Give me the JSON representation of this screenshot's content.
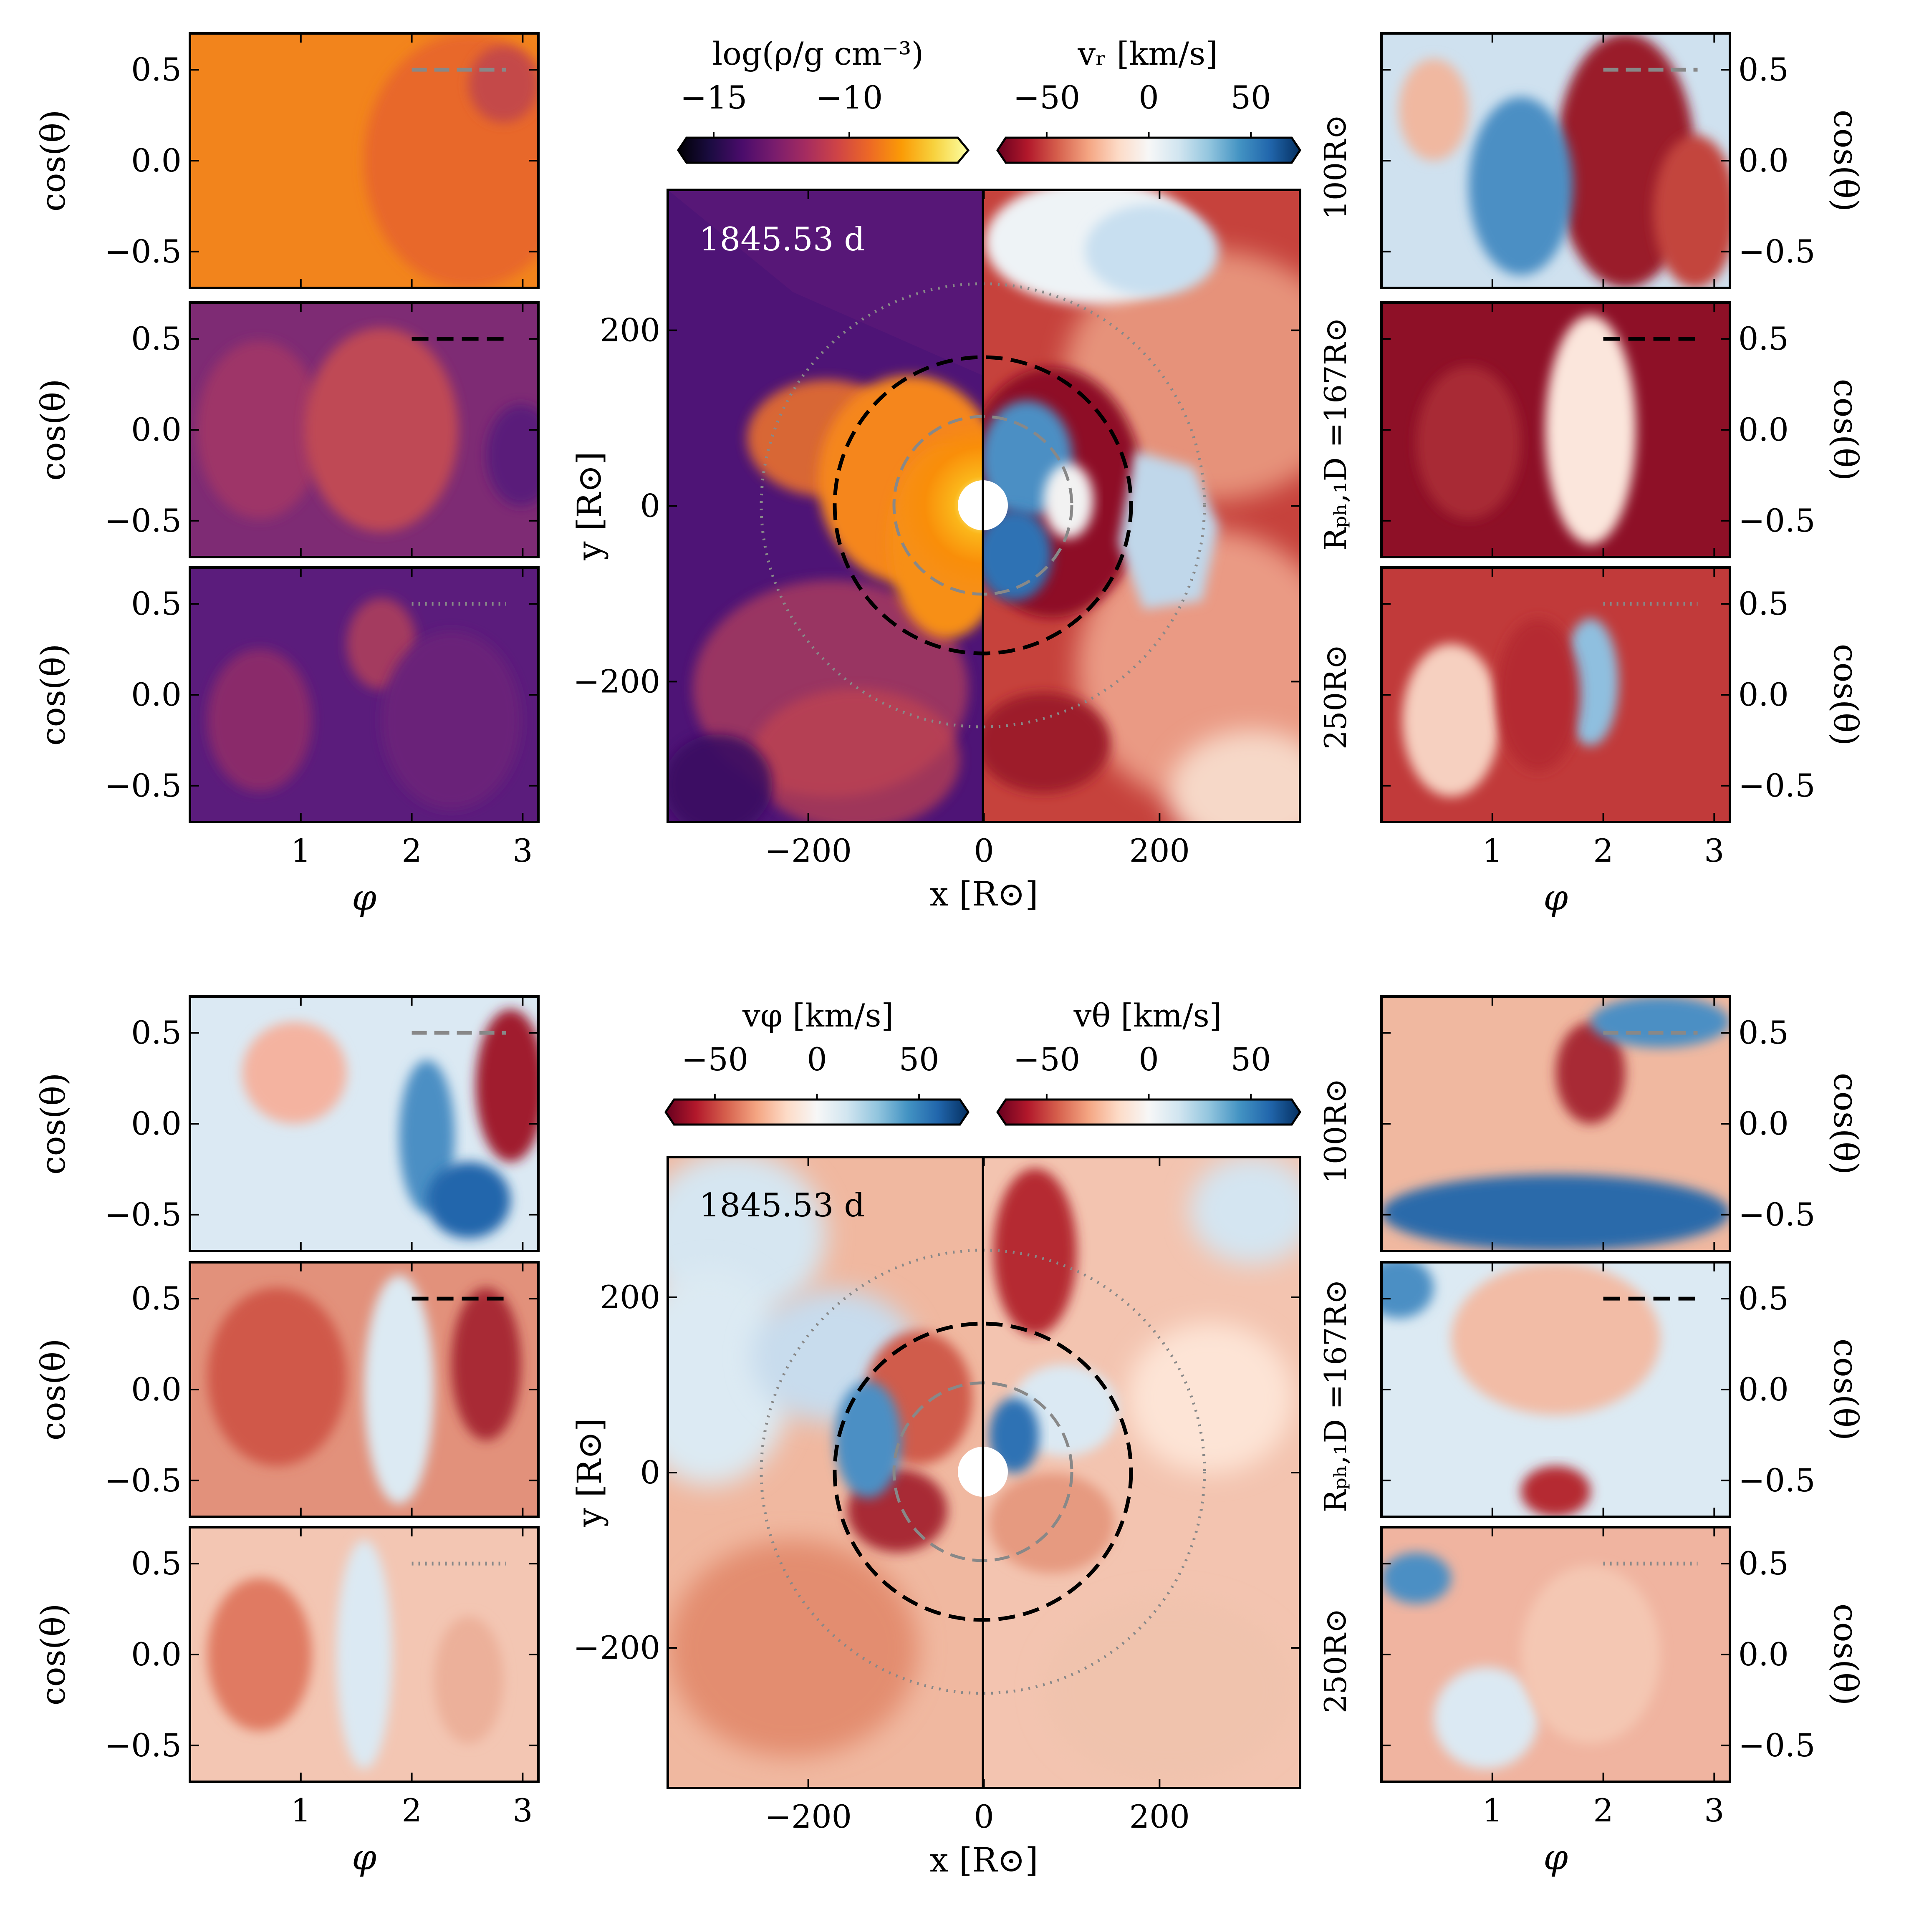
{
  "figure": {
    "time_label": "1845.53 d",
    "radii_labels": {
      "inner": "100R⊙",
      "middle": "Rₚₕ,₁D =167R⊙",
      "outer": "250R⊙"
    },
    "radii_values": [
      100,
      167,
      250
    ],
    "colors": {
      "density_cmap": [
        "#000004",
        "#1b0c41",
        "#4a0c6b",
        "#781c6d",
        "#a52c60",
        "#cf4446",
        "#ed6925",
        "#fb9b06",
        "#f7d13d",
        "#fcffa4"
      ],
      "diverging_cmap": [
        "#67001f",
        "#b2182b",
        "#d6604d",
        "#f4a582",
        "#fddbc7",
        "#f7f7f7",
        "#d1e5f0",
        "#92c5de",
        "#4393c3",
        "#2166ac",
        "#053061"
      ],
      "circle_inner": "#888888",
      "circle_middle": "#000000",
      "circle_outer": "#888888"
    }
  },
  "chart_data": [
    {
      "id": "top-center",
      "type": "heatmap",
      "xlabel": "x [R⊙]",
      "ylabel": "y [R⊙]",
      "xlim": [
        -360,
        360
      ],
      "ylim": [
        -360,
        360
      ],
      "xticks": [
        -200,
        0,
        200
      ],
      "yticks": [
        -200,
        0,
        200
      ],
      "xtick_labels": [
        "−200",
        "0",
        "200"
      ],
      "ytick_labels": [
        "−200",
        "0",
        "200"
      ],
      "left_colorbar": {
        "label": "log(ρ/g cm⁻³)",
        "ticks": [
          -15,
          -10
        ],
        "tick_labels": [
          "−15",
          "−10"
        ],
        "range": [
          -16,
          -6
        ]
      },
      "right_colorbar": {
        "label": "vᵣ [km/s]",
        "ticks": [
          -50,
          0,
          50
        ],
        "tick_labels": [
          "−50",
          "0",
          "50"
        ],
        "range": [
          -70,
          70
        ]
      }
    },
    {
      "id": "bottom-center",
      "type": "heatmap",
      "xlabel": "x [R⊙]",
      "ylabel": "y [R⊙]",
      "xlim": [
        -360,
        360
      ],
      "ylim": [
        -360,
        360
      ],
      "xticks": [
        -200,
        0,
        200
      ],
      "yticks": [
        -200,
        0,
        200
      ],
      "xtick_labels": [
        "−200",
        "0",
        "200"
      ],
      "ytick_labels": [
        "−200",
        "0",
        "200"
      ],
      "left_colorbar": {
        "label": "vφ [km/s]",
        "ticks": [
          -50,
          0,
          50
        ],
        "tick_labels": [
          "−50",
          "0",
          "50"
        ],
        "range": [
          -70,
          70
        ]
      },
      "right_colorbar": {
        "label": "vθ [km/s]",
        "ticks": [
          -50,
          0,
          50
        ],
        "tick_labels": [
          "−50",
          "0",
          "50"
        ],
        "range": [
          -70,
          70
        ]
      }
    },
    {
      "id": "side-maps",
      "type": "heatmap",
      "xlabel": "φ",
      "ylabel": "cos(θ)",
      "xlim": [
        0,
        3.14159
      ],
      "ylim": [
        -0.7,
        0.7
      ],
      "xticks": [
        1,
        2,
        3
      ],
      "yticks": [
        0.5,
        0.0,
        -0.5
      ],
      "xtick_labels": [
        "1",
        "2",
        "3"
      ],
      "ytick_labels": [
        "0.5",
        "0.0",
        "−0.5"
      ],
      "panels": [
        "top-left ρ at 100R⊙",
        "top-left ρ at 167R⊙",
        "top-left ρ at 250R⊙",
        "top-right vᵣ at 100R⊙",
        "top-right vᵣ at 167R⊙",
        "top-right vᵣ at 250R⊙",
        "bottom-left vφ at 100R⊙",
        "bottom-left vφ at 167R⊙",
        "bottom-left vφ at 250R⊙",
        "bottom-right vθ at 100R⊙",
        "bottom-right vθ at 167R⊙",
        "bottom-right vθ at 250R⊙"
      ]
    }
  ]
}
